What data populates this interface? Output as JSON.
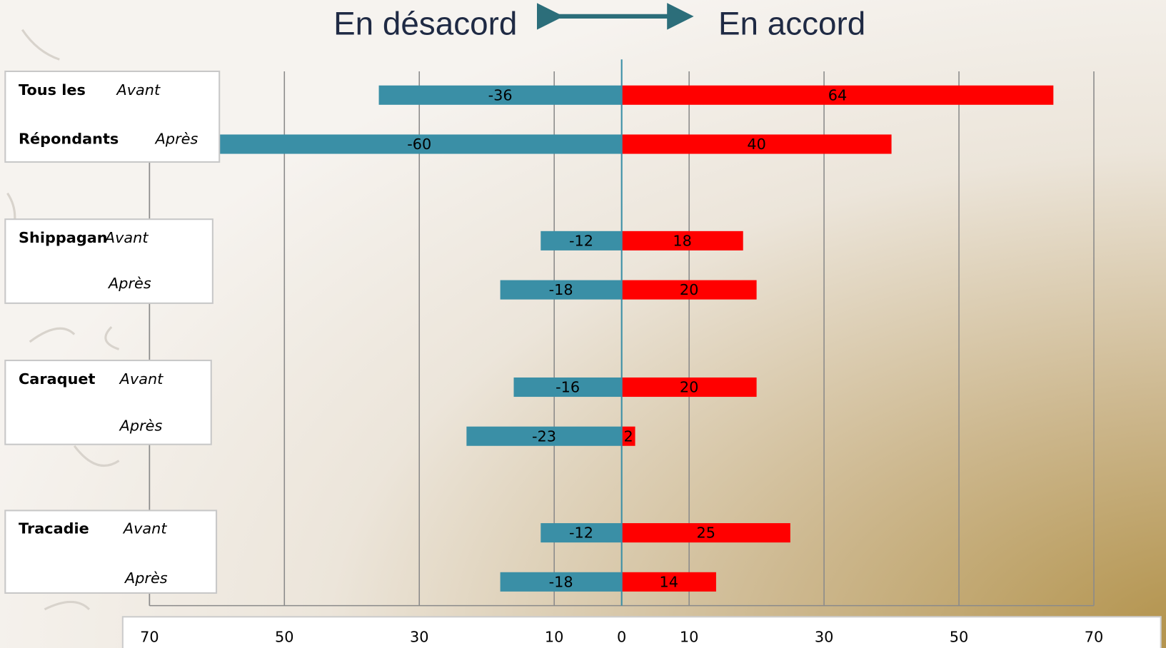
{
  "chart_data": {
    "type": "diverging-bar",
    "groups": [
      [
        "Tous les",
        "Répondants"
      ],
      [
        "Shippagan"
      ],
      [
        "Caraquet"
      ],
      [
        "Tracadie"
      ]
    ],
    "categories": [
      "Avant",
      "Après",
      "Avant",
      "Après",
      "Avant",
      "Après",
      "Avant",
      "Après"
    ],
    "series": [
      {
        "name": "En désacord",
        "color": "#3a8fa6",
        "values": [
          -36,
          -60,
          -12,
          -18,
          -16,
          -23,
          -12,
          -18
        ]
      },
      {
        "name": "En accord",
        "color": "#ff0000",
        "values": [
          64,
          40,
          18,
          20,
          20,
          2,
          25,
          14
        ]
      }
    ],
    "xlim": [
      -70,
      70
    ],
    "xticks": [
      {
        "value": -70,
        "label": "70"
      },
      {
        "value": -50,
        "label": "50"
      },
      {
        "value": -30,
        "label": "30"
      },
      {
        "value": -10,
        "label": "10"
      },
      0,
      10,
      30,
      50,
      70
    ],
    "grid": true
  }
}
